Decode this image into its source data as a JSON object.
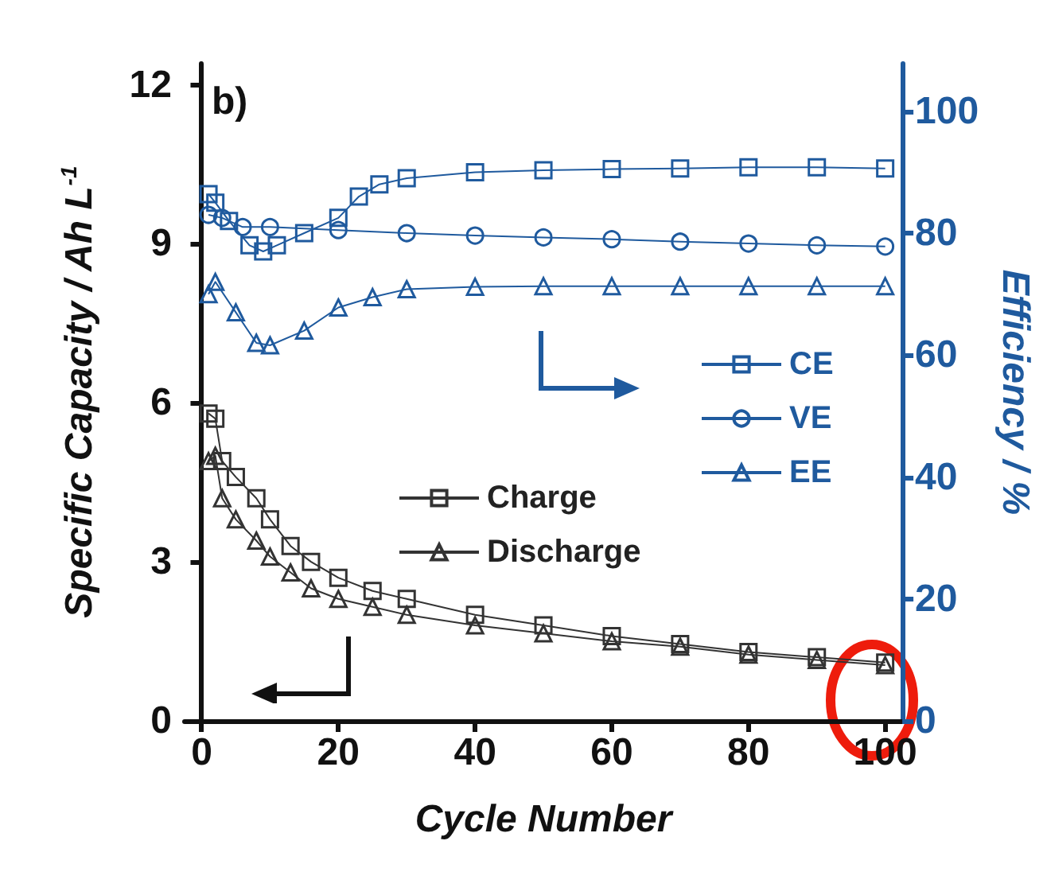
{
  "chart_data": {
    "type": "line",
    "xlabel": "Cycle Number",
    "ylabel": "Specific Capacity / Ah L$^{-1}$",
    "y2label": "Efficiency / %",
    "annotations": [
      "b)"
    ],
    "xlim": [
      -2.5,
      102.5
    ],
    "xticks": [
      0,
      20,
      40,
      60,
      80,
      100
    ],
    "ylim": [
      0,
      12.4
    ],
    "yticks": [
      0,
      3,
      6,
      9,
      12
    ],
    "y2lim": [
      0,
      107.8
    ],
    "y2ticks": [
      0,
      20,
      40,
      60,
      80,
      100
    ],
    "grid": false,
    "legend": "center",
    "series": [
      {
        "name": "Charge",
        "color": "#333333",
        "marker": "square",
        "x": [
          1,
          2,
          3,
          5,
          8,
          10,
          13,
          16,
          20,
          25,
          30,
          40,
          50,
          60,
          70,
          80,
          90,
          100
        ],
        "values": [
          5.8,
          5.7,
          4.9,
          4.6,
          4.2,
          3.8,
          3.3,
          3.0,
          2.7,
          2.45,
          2.3,
          2.0,
          1.8,
          1.6,
          1.45,
          1.3,
          1.2,
          1.1
        ]
      },
      {
        "name": "Discharge",
        "color": "#333333",
        "marker": "triangle",
        "x": [
          1,
          2,
          3,
          5,
          8,
          10,
          13,
          16,
          20,
          25,
          30,
          40,
          50,
          60,
          70,
          80,
          90,
          100
        ],
        "values": [
          4.9,
          5.0,
          4.2,
          3.8,
          3.4,
          3.1,
          2.8,
          2.5,
          2.3,
          2.15,
          2.0,
          1.8,
          1.65,
          1.5,
          1.4,
          1.25,
          1.15,
          1.05
        ]
      },
      {
        "name": "CE",
        "color": "#1f5a9e",
        "marker": "square",
        "axis": "y2",
        "x": [
          1,
          2,
          4,
          7,
          9,
          11,
          15,
          20,
          23,
          26,
          30,
          40,
          50,
          60,
          70,
          80,
          90,
          100
        ],
        "values": [
          86.4,
          85,
          82,
          78,
          77,
          78,
          80,
          82.5,
          86,
          88,
          89,
          90,
          90.3,
          90.5,
          90.6,
          90.8,
          90.8,
          90.6
        ]
      },
      {
        "name": "VE",
        "color": "#1f5a9e",
        "marker": "circle",
        "axis": "y2",
        "x": [
          1,
          3,
          6,
          10,
          20,
          30,
          40,
          50,
          60,
          70,
          80,
          90,
          100
        ],
        "values": [
          83,
          82.5,
          81,
          81,
          80.5,
          80,
          79.6,
          79.3,
          79,
          78.6,
          78.3,
          78,
          77.8
        ]
      },
      {
        "name": "EE",
        "color": "#1f5a9e",
        "marker": "triangle",
        "axis": "y2",
        "x": [
          1,
          2,
          5,
          8,
          10,
          15,
          20,
          25,
          30,
          40,
          50,
          60,
          70,
          80,
          90,
          100
        ],
        "values": [
          70,
          72,
          67,
          62,
          61.6,
          64,
          67.8,
          69.5,
          70.8,
          71.2,
          71.3,
          71.3,
          71.3,
          71.3,
          71.3,
          71.3
        ]
      }
    ]
  }
}
